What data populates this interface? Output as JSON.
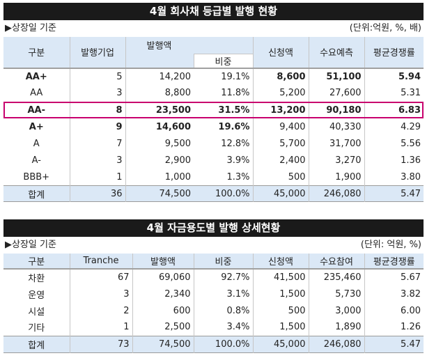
{
  "section1": {
    "title": "4월 회사채 등급별 발행 현황",
    "basis": "▶상장일 기준",
    "unit": "(단위:억원, %, 배)",
    "headers": [
      "구분",
      "발행기업",
      "발행액",
      "비중",
      "신청액",
      "수요예측",
      "평균경쟁률"
    ],
    "rows": [
      {
        "cells": [
          "AA+",
          "5",
          "14,200",
          "19.1%",
          "8,600",
          "51,100",
          "5.94"
        ]
      },
      {
        "cells": [
          "AA",
          "3",
          "8,800",
          "11.8%",
          "5,200",
          "27,600",
          "5.31"
        ]
      },
      {
        "cells": [
          "AA-",
          "8",
          "23,500",
          "31.5%",
          "13,200",
          "90,180",
          "6.83"
        ]
      },
      {
        "cells": [
          "A+",
          "9",
          "14,600",
          "19.6%",
          "9,400",
          "40,330",
          "4.29"
        ]
      },
      {
        "cells": [
          "A",
          "7",
          "9,500",
          "12.8%",
          "5,700",
          "31,700",
          "5.56"
        ]
      },
      {
        "cells": [
          "A-",
          "3",
          "2,900",
          "3.9%",
          "2,400",
          "3,270",
          "1.36"
        ]
      },
      {
        "cells": [
          "BBB+",
          "1",
          "1,000",
          "1.3%",
          "500",
          "1,900",
          "3.80"
        ]
      }
    ],
    "total": [
      "합계",
      "36",
      "74,500",
      "100.0%",
      "45,000",
      "246,080",
      "5.47"
    ]
  },
  "section2": {
    "title": "4월 자금용도별 발행 상세현황",
    "basis": "▶상장일 기준",
    "unit": "(단위: 억원, %)",
    "headers": [
      "구분",
      "Tranche",
      "발행액",
      "비중",
      "신청액",
      "수요참여",
      "평균경쟁률"
    ],
    "rows": [
      {
        "cells": [
          "차환",
          "67",
          "69,060",
          "92.7%",
          "41,500",
          "235,460",
          "5.67"
        ]
      },
      {
        "cells": [
          "운영",
          "3",
          "2,340",
          "3.1%",
          "1,500",
          "5,730",
          "3.82"
        ]
      },
      {
        "cells": [
          "시설",
          "2",
          "600",
          "0.8%",
          "500",
          "3,000",
          "6.00"
        ]
      },
      {
        "cells": [
          "기타",
          "1",
          "2,500",
          "3.4%",
          "1,500",
          "1,890",
          "1.26"
        ]
      }
    ],
    "total": [
      "합계",
      "73",
      "74,500",
      "100.0%",
      "45,000",
      "246,080",
      "5.47"
    ]
  },
  "colors": {
    "header_bg": "#dbe8f6",
    "highlight": "#c8006e",
    "title_bg": "#1a1a1a"
  }
}
